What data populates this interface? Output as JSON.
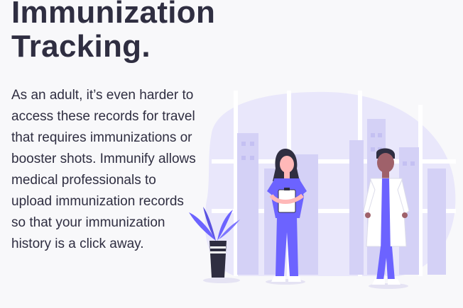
{
  "section": {
    "title_line1": "Immunization",
    "title_line2": "Tracking.",
    "body": "As an adult, it’s even harder to access these records for travel that requires immunizations or booster shots. Immunify allows medical professionals to upload immunization records so that your immunization history is a click away."
  },
  "illustration": {
    "accent_color": "#6c63ff",
    "backdrop_color": "#e8e6fb"
  }
}
